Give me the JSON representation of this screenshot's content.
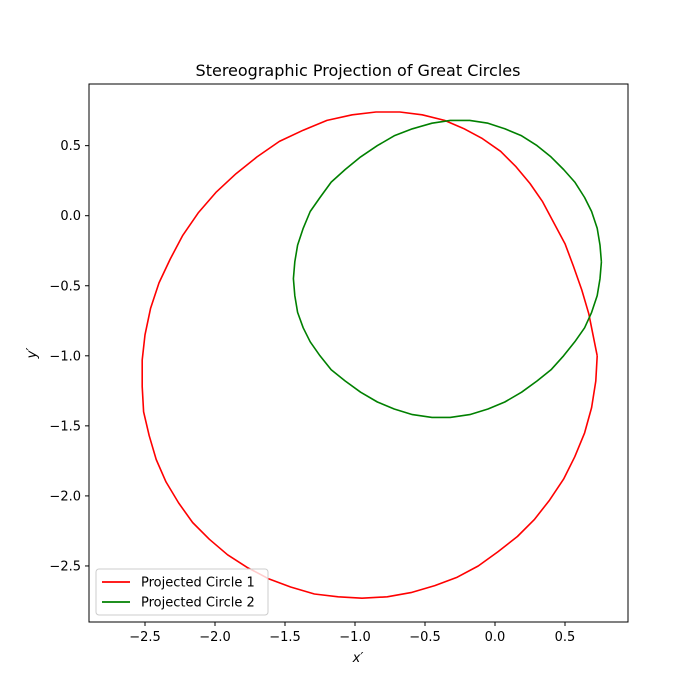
{
  "chart_data": {
    "type": "line",
    "title": "Stereographic Projection of Great Circles",
    "xlabel": "x′",
    "ylabel": "y′",
    "xlim": [
      -2.9,
      0.95
    ],
    "ylim": [
      -2.9,
      0.94
    ],
    "xticks": [
      -2.5,
      -2.0,
      -1.5,
      -1.0,
      -0.5,
      0.0,
      0.5
    ],
    "xtick_labels": [
      "−2.5",
      "−2.0",
      "−1.5",
      "−1.0",
      "−0.5",
      "0.0",
      "0.5"
    ],
    "yticks": [
      -2.5,
      -2.0,
      -1.5,
      -1.0,
      -0.5,
      0.0,
      0.5
    ],
    "ytick_labels": [
      "−2.5",
      "−2.0",
      "−1.5",
      "−1.0",
      "−0.5",
      "0.0",
      "0.5"
    ],
    "grid": false,
    "legend_position": "lower-left",
    "series": [
      {
        "name": "Projected Circle 1",
        "color": "#ff0000",
        "x": [
          0.73,
          0.72,
          0.69,
          0.64,
          0.57,
          0.49,
          0.39,
          0.28,
          0.16,
          0.02,
          -0.12,
          -0.27,
          -0.43,
          -0.6,
          -0.77,
          -0.95,
          -1.12,
          -1.29,
          -1.46,
          -1.62,
          -1.77,
          -1.91,
          -2.04,
          -2.16,
          -2.26,
          -2.35,
          -2.42,
          -2.47,
          -2.51,
          -2.52,
          -2.52,
          -2.5,
          -2.46,
          -2.4,
          -2.32,
          -2.23,
          -2.12,
          -1.99,
          -1.85,
          -1.7,
          -1.54,
          -1.37,
          -1.2,
          -1.02,
          -0.85,
          -0.68,
          -0.52,
          -0.36,
          -0.22,
          -0.09,
          0.04,
          0.15,
          0.25,
          0.34,
          0.42,
          0.5,
          0.56,
          0.62,
          0.67,
          0.7,
          0.73
        ],
        "y": [
          -1.0,
          -1.18,
          -1.37,
          -1.55,
          -1.72,
          -1.88,
          -2.03,
          -2.17,
          -2.29,
          -2.4,
          -2.5,
          -2.58,
          -2.64,
          -2.69,
          -2.72,
          -2.73,
          -2.72,
          -2.7,
          -2.65,
          -2.59,
          -2.51,
          -2.42,
          -2.31,
          -2.19,
          -2.05,
          -1.9,
          -1.74,
          -1.57,
          -1.4,
          -1.22,
          -1.03,
          -0.85,
          -0.66,
          -0.48,
          -0.31,
          -0.14,
          0.02,
          0.17,
          0.3,
          0.42,
          0.53,
          0.61,
          0.68,
          0.72,
          0.74,
          0.74,
          0.72,
          0.68,
          0.62,
          0.55,
          0.46,
          0.35,
          0.23,
          0.1,
          -0.05,
          -0.2,
          -0.36,
          -0.53,
          -0.7,
          -0.85,
          -1.0
        ],
        "points": [
          [
            0.73,
            -1.0
          ],
          [
            0.72,
            -1.18
          ],
          [
            0.69,
            -1.37
          ],
          [
            0.64,
            -1.55
          ],
          [
            0.57,
            -1.72
          ],
          [
            0.49,
            -1.88
          ],
          [
            0.39,
            -2.03
          ],
          [
            0.28,
            -2.17
          ],
          [
            0.16,
            -2.29
          ],
          [
            0.02,
            -2.4
          ],
          [
            -0.12,
            -2.5
          ],
          [
            -0.27,
            -2.58
          ],
          [
            -0.43,
            -2.64
          ],
          [
            -0.6,
            -2.69
          ],
          [
            -0.77,
            -2.72
          ],
          [
            -0.95,
            -2.73
          ],
          [
            -1.12,
            -2.72
          ],
          [
            -1.29,
            -2.7
          ],
          [
            -1.46,
            -2.65
          ],
          [
            -1.62,
            -2.59
          ],
          [
            -1.77,
            -2.51
          ],
          [
            -1.91,
            -2.42
          ],
          [
            -2.04,
            -2.31
          ],
          [
            -2.16,
            -2.19
          ],
          [
            -2.26,
            -2.05
          ],
          [
            -2.35,
            -1.9
          ],
          [
            -2.42,
            -1.74
          ],
          [
            -2.47,
            -1.57
          ],
          [
            -2.51,
            -1.4
          ],
          [
            -2.52,
            -1.22
          ],
          [
            -2.52,
            -1.03
          ],
          [
            -2.5,
            -0.85
          ],
          [
            -2.46,
            -0.66
          ],
          [
            -2.4,
            -0.48
          ],
          [
            -2.32,
            -0.31
          ],
          [
            -2.23,
            -0.14
          ],
          [
            -2.12,
            0.02
          ],
          [
            -1.99,
            0.17
          ],
          [
            -1.85,
            0.3
          ],
          [
            -1.7,
            0.42
          ],
          [
            -1.54,
            0.53
          ],
          [
            -1.37,
            0.61
          ],
          [
            -1.2,
            0.68
          ],
          [
            -1.02,
            0.72
          ],
          [
            -0.85,
            0.74
          ],
          [
            -0.68,
            0.74
          ],
          [
            -0.52,
            0.72
          ],
          [
            -0.36,
            0.68
          ],
          [
            -0.22,
            0.62
          ],
          [
            -0.09,
            0.55
          ],
          [
            0.04,
            0.46
          ],
          [
            0.15,
            0.35
          ],
          [
            0.25,
            0.23
          ],
          [
            0.34,
            0.1
          ],
          [
            0.42,
            -0.05
          ],
          [
            0.5,
            -0.2
          ],
          [
            0.56,
            -0.36
          ],
          [
            0.62,
            -0.53
          ],
          [
            0.67,
            -0.7
          ],
          [
            0.7,
            -0.85
          ],
          [
            0.73,
            -1.0
          ]
        ]
      },
      {
        "name": "Projected Circle 2",
        "color": "#008000",
        "points": [
          [
            0.76,
            -0.33
          ],
          [
            0.75,
            -0.45
          ],
          [
            0.73,
            -0.57
          ],
          [
            0.69,
            -0.69
          ],
          [
            0.64,
            -0.8
          ],
          [
            0.57,
            -0.9
          ],
          [
            0.49,
            -1.0
          ],
          [
            0.4,
            -1.1
          ],
          [
            0.3,
            -1.18
          ],
          [
            0.19,
            -1.26
          ],
          [
            0.07,
            -1.33
          ],
          [
            -0.05,
            -1.38
          ],
          [
            -0.18,
            -1.42
          ],
          [
            -0.32,
            -1.44
          ],
          [
            -0.45,
            -1.44
          ],
          [
            -0.59,
            -1.42
          ],
          [
            -0.72,
            -1.38
          ],
          [
            -0.84,
            -1.33
          ],
          [
            -0.96,
            -1.26
          ],
          [
            -1.07,
            -1.18
          ],
          [
            -1.17,
            -1.1
          ],
          [
            -1.25,
            -1.0
          ],
          [
            -1.32,
            -0.9
          ],
          [
            -1.37,
            -0.8
          ],
          [
            -1.41,
            -0.69
          ],
          [
            -1.43,
            -0.57
          ],
          [
            -1.44,
            -0.45
          ],
          [
            -1.43,
            -0.33
          ],
          [
            -1.41,
            -0.21
          ],
          [
            -1.37,
            -0.09
          ],
          [
            -1.32,
            0.03
          ],
          [
            -1.25,
            0.13
          ],
          [
            -1.17,
            0.24
          ],
          [
            -1.07,
            0.33
          ],
          [
            -0.96,
            0.42
          ],
          [
            -0.84,
            0.5
          ],
          [
            -0.72,
            0.57
          ],
          [
            -0.59,
            0.62
          ],
          [
            -0.45,
            0.66
          ],
          [
            -0.32,
            0.68
          ],
          [
            -0.18,
            0.68
          ],
          [
            -0.05,
            0.66
          ],
          [
            0.07,
            0.62
          ],
          [
            0.19,
            0.57
          ],
          [
            0.3,
            0.5
          ],
          [
            0.4,
            0.42
          ],
          [
            0.49,
            0.33
          ],
          [
            0.57,
            0.24
          ],
          [
            0.64,
            0.13
          ],
          [
            0.69,
            0.03
          ],
          [
            0.73,
            -0.09
          ],
          [
            0.75,
            -0.21
          ],
          [
            0.76,
            -0.33
          ]
        ]
      }
    ]
  }
}
